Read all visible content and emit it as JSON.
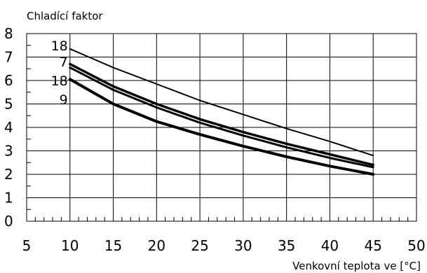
{
  "chart_data": {
    "type": "line",
    "title": "",
    "ylabel": "Chladící faktor",
    "xlabel": "Venkovní teplota ve [°C]",
    "xlim": [
      5,
      50
    ],
    "ylim": [
      0,
      8
    ],
    "xticks": [
      5,
      10,
      15,
      20,
      25,
      30,
      35,
      40,
      45,
      50
    ],
    "yticks": [
      0,
      1,
      2,
      3,
      4,
      5,
      6,
      7,
      8
    ],
    "grid": true,
    "series": [
      {
        "name": "18",
        "label_y": 7.5,
        "stroke": 2,
        "x": [
          10,
          15,
          20,
          25,
          30,
          35,
          40,
          45
        ],
        "y": [
          7.35,
          6.55,
          5.85,
          5.15,
          4.55,
          3.95,
          3.4,
          2.8
        ]
      },
      {
        "name": "7",
        "label_y": 6.8,
        "stroke": 3.5,
        "x": [
          10,
          15,
          20,
          25,
          30,
          35,
          40,
          45
        ],
        "y": [
          6.7,
          5.75,
          5.0,
          4.35,
          3.8,
          3.3,
          2.85,
          2.4
        ]
      },
      {
        "name": "18",
        "label_y": 6.0,
        "stroke": 3,
        "x": [
          10,
          15,
          20,
          25,
          30,
          35,
          40,
          45
        ],
        "y": [
          6.55,
          5.6,
          4.85,
          4.2,
          3.65,
          3.15,
          2.7,
          2.3
        ]
      },
      {
        "name": "9",
        "label_y": 5.2,
        "stroke": 4,
        "x": [
          10,
          15,
          20,
          25,
          30,
          35,
          40,
          45
        ],
        "y": [
          6.05,
          5.0,
          4.25,
          3.7,
          3.2,
          2.75,
          2.35,
          2.0
        ]
      }
    ]
  }
}
